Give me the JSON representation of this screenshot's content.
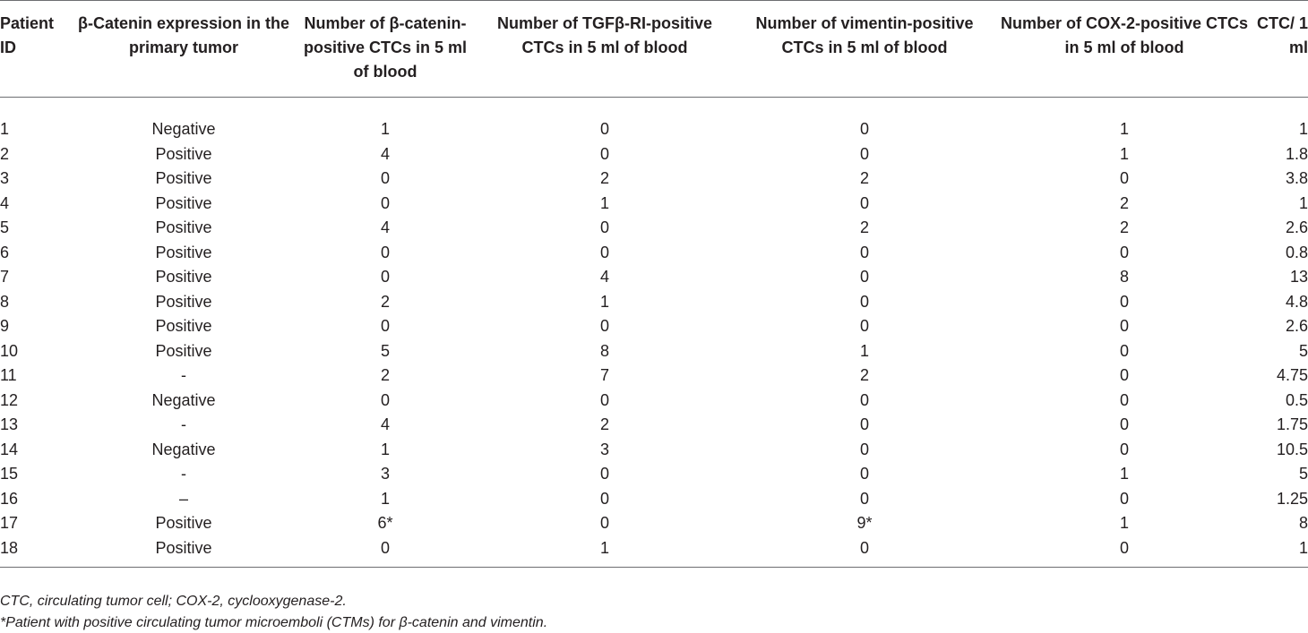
{
  "table": {
    "columns": [
      {
        "label": "Patient ID",
        "align": "c-left"
      },
      {
        "label": "β-Catenin expression in the primary tumor",
        "align": "c-center"
      },
      {
        "label": "Number of β-catenin-positive CTCs in 5 ml of blood",
        "align": "c-center"
      },
      {
        "label": "Number of TGFβ-RI-positive CTCs in 5 ml of blood",
        "align": "c-center"
      },
      {
        "label": "Number of vimentin-positive CTCs in 5 ml of blood",
        "align": "c-center"
      },
      {
        "label": "Number of COX-2-positive CTCs in 5 ml of blood",
        "align": "c-center"
      },
      {
        "label": "CTC/ 1 ml",
        "align": "c-right"
      }
    ],
    "rows": [
      [
        "1",
        "Negative",
        "1",
        "0",
        "0",
        "1",
        "1"
      ],
      [
        "2",
        "Positive",
        "4",
        "0",
        "0",
        "1",
        "1.8"
      ],
      [
        "3",
        "Positive",
        "0",
        "2",
        "2",
        "0",
        "3.8"
      ],
      [
        "4",
        "Positive",
        "0",
        "1",
        "0",
        "2",
        "1"
      ],
      [
        "5",
        "Positive",
        "4",
        "0",
        "2",
        "2",
        "2.6"
      ],
      [
        "6",
        "Positive",
        "0",
        "0",
        "0",
        "0",
        "0.8"
      ],
      [
        "7",
        "Positive",
        "0",
        "4",
        "0",
        "8",
        "13"
      ],
      [
        "8",
        "Positive",
        "2",
        "1",
        "0",
        "0",
        "4.8"
      ],
      [
        "9",
        "Positive",
        "0",
        "0",
        "0",
        "0",
        "2.6"
      ],
      [
        "10",
        "Positive",
        "5",
        "8",
        "1",
        "0",
        "5"
      ],
      [
        "11",
        "-",
        "2",
        "7",
        "2",
        "0",
        "4.75"
      ],
      [
        "12",
        "Negative",
        "0",
        "0",
        "0",
        "0",
        "0.5"
      ],
      [
        "13",
        "-",
        "4",
        "2",
        "0",
        "0",
        "1.75"
      ],
      [
        "14",
        "Negative",
        "1",
        "3",
        "0",
        "0",
        "10.5"
      ],
      [
        "15",
        "-",
        "3",
        "0",
        "0",
        "1",
        "5"
      ],
      [
        "16",
        "–",
        "1",
        "0",
        "0",
        "0",
        "1.25"
      ],
      [
        "17",
        "Positive",
        "6*",
        "0",
        "9*",
        "1",
        "8"
      ],
      [
        "18",
        "Positive",
        "0",
        "1",
        "0",
        "0",
        "1"
      ]
    ]
  },
  "footnotes": {
    "abbreviations": "CTC, circulating tumor cell; COX-2, cyclooxygenase-2.",
    "asterisk": "*Patient with positive circulating tumor microemboli (CTMs) for β-catenin and vimentin."
  }
}
